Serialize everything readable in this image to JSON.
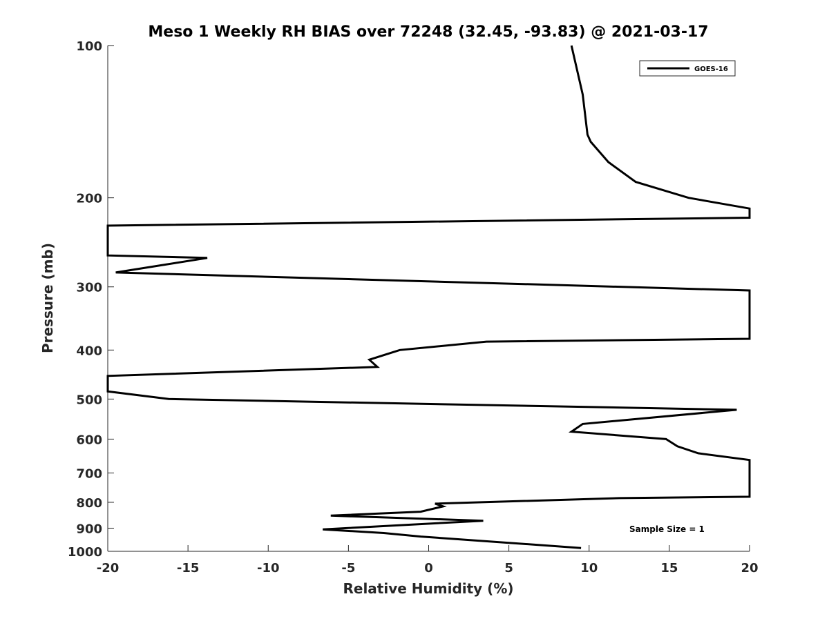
{
  "chart_data": {
    "type": "line",
    "title": "Meso 1 Weekly RH BIAS over 72248 (32.45, -93.83) @ 2021-03-17",
    "xlabel": "Relative Humidity (%)",
    "ylabel": "Pressure (mb)",
    "xlim": [
      -20,
      20
    ],
    "ylim": [
      1000,
      100
    ],
    "yscale": "log",
    "y_reversed": true,
    "grid": false,
    "legend_position": "top-right",
    "x_ticks": [
      "-20",
      "-15",
      "-10",
      "-5",
      "0",
      "5",
      "10",
      "15",
      "20"
    ],
    "y_ticks": [
      "100",
      "200",
      "300",
      "400",
      "500",
      "600",
      "700",
      "800",
      "900",
      "1000"
    ],
    "annotation": "Sample Size = 1",
    "series": [
      {
        "name": "GOES-16",
        "color": "#000000",
        "x": [
          8.9,
          9.6,
          9.9,
          10.1,
          11.2,
          12.9,
          16.2,
          20.0,
          20.0,
          -20.0,
          -20.0,
          -13.8,
          -19.5,
          20.0,
          20.0,
          3.6,
          -1.8,
          -3.7,
          -3.2,
          -20.0,
          -20.0,
          -16.2,
          19.2,
          9.6,
          8.9,
          14.8,
          15.5,
          16.8,
          20.0,
          20.0,
          11.9,
          0.4,
          0.9,
          -0.5,
          -6.1,
          3.4,
          -6.6,
          -2.8,
          -0.5,
          9.5
        ],
        "y": [
          100,
          125,
          150,
          155,
          170,
          186,
          200,
          210,
          219,
          227,
          260,
          263,
          281,
          305,
          380,
          385,
          400,
          418,
          432,
          450,
          483,
          500,
          525,
          560,
          580,
          600,
          620,
          640,
          660,
          780,
          785,
          805,
          815,
          835,
          850,
          870,
          905,
          920,
          935,
          985
        ]
      }
    ]
  }
}
